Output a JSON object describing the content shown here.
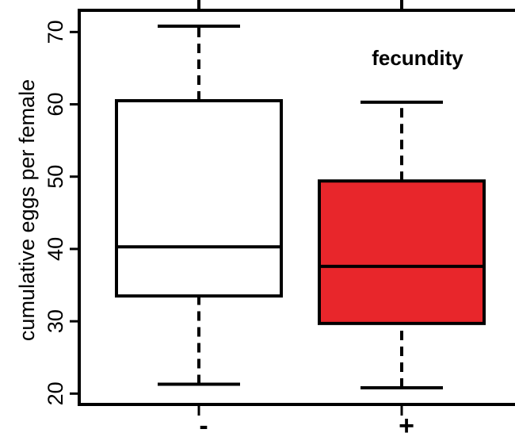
{
  "chart_data": {
    "type": "boxplot",
    "title": "",
    "annotation": "fecundity",
    "xlabel": "",
    "ylabel": "cumulative eggs per female",
    "ylim": [
      18.5,
      73
    ],
    "yticks": [
      20,
      30,
      40,
      50,
      60,
      70
    ],
    "ytick_labels": [
      "20",
      "30",
      "40",
      "50",
      "60",
      "70"
    ],
    "categories": [
      "-",
      "+"
    ],
    "boxes": [
      {
        "category": "-",
        "whisker_low": 21.3,
        "q1": 33.5,
        "median": 40.3,
        "q3": 60.5,
        "whisker_high": 70.8,
        "color": "#ffffff"
      },
      {
        "category": "+",
        "whisker_low": 20.8,
        "q1": 29.7,
        "median": 37.6,
        "q3": 49.4,
        "whisker_high": 60.3,
        "color": "#e8262b"
      }
    ],
    "grid": false
  }
}
